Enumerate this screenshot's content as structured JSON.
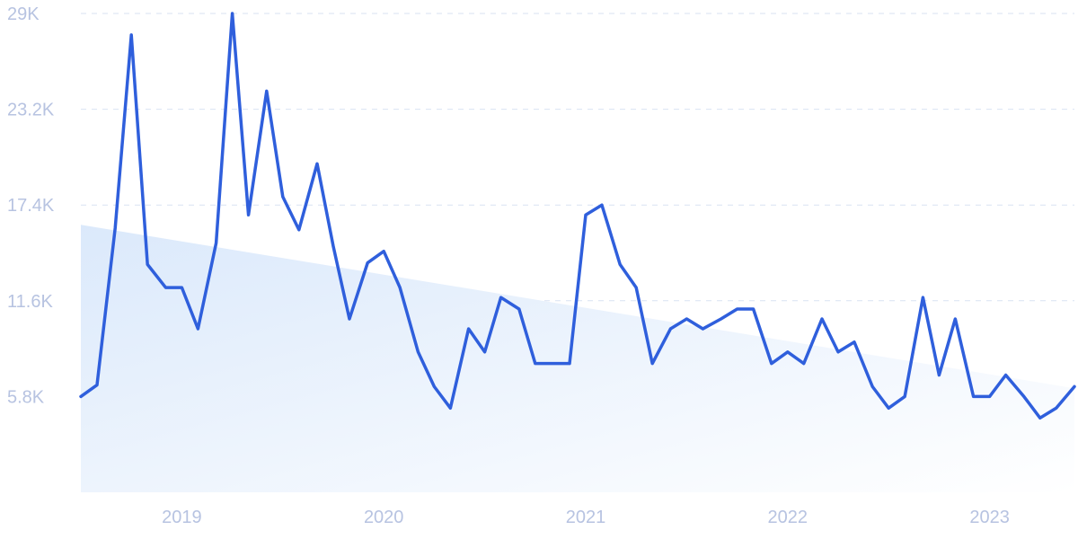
{
  "chart_data": {
    "type": "line",
    "title": "",
    "xlabel": "",
    "ylabel": "",
    "ylim": [
      0,
      29000
    ],
    "y_ticks": [
      "5.8K",
      "11.6K",
      "17.4K",
      "23.2K",
      "29K"
    ],
    "y_tick_values": [
      5800,
      11600,
      17400,
      23200,
      29000
    ],
    "x_ticks": [
      "2019",
      "2020",
      "2021",
      "2022",
      "2023"
    ],
    "x_tick_values": [
      2019.0,
      2020.0,
      2021.0,
      2022.0,
      2023.0
    ],
    "grid": true,
    "colors": {
      "line": "#2f5fdc",
      "trend_fill_start": "#dbe9fb",
      "trend_fill_end": "#ffffff",
      "grid": "#d9e2f2",
      "tick_text": "#b7c3e1"
    },
    "trend": {
      "x": [
        2018.5,
        2023.42
      ],
      "y": [
        16200,
        6300
      ]
    },
    "series": [
      {
        "x": [
          2018.5,
          2018.58,
          2018.67,
          2018.75,
          2018.83,
          2018.92,
          2019.0,
          2019.08,
          2019.17,
          2019.25,
          2019.33,
          2019.42,
          2019.5,
          2019.58,
          2019.67,
          2019.75,
          2019.83,
          2019.92,
          2020.0,
          2020.08,
          2020.17,
          2020.25,
          2020.33,
          2020.42,
          2020.5,
          2020.58,
          2020.67,
          2020.75,
          2020.83,
          2020.92,
          2021.0,
          2021.08,
          2021.17,
          2021.25,
          2021.33,
          2021.42,
          2021.5,
          2021.58,
          2021.67,
          2021.75,
          2021.83,
          2021.92,
          2022.0,
          2022.08,
          2022.17,
          2022.25,
          2022.33,
          2022.42,
          2022.5,
          2022.58,
          2022.67,
          2022.75,
          2022.83,
          2022.92,
          2023.0,
          2023.08,
          2023.17,
          2023.25,
          2023.33,
          2023.42
        ],
        "y": [
          5800,
          6500,
          16000,
          27700,
          13800,
          12400,
          12400,
          9900,
          15100,
          29000,
          16800,
          24300,
          17900,
          15900,
          19900,
          14900,
          10500,
          13900,
          14600,
          12400,
          8500,
          6400,
          5100,
          9900,
          8500,
          11800,
          11100,
          7800,
          7800,
          7800,
          16800,
          17400,
          13800,
          12400,
          7800,
          9900,
          10500,
          9900,
          10500,
          11100,
          11100,
          7800,
          8500,
          7800,
          10500,
          8500,
          9100,
          6400,
          5100,
          5800,
          11800,
          7100,
          10500,
          5800,
          5800,
          7100,
          5800,
          4500,
          5100,
          6400
        ]
      }
    ]
  }
}
